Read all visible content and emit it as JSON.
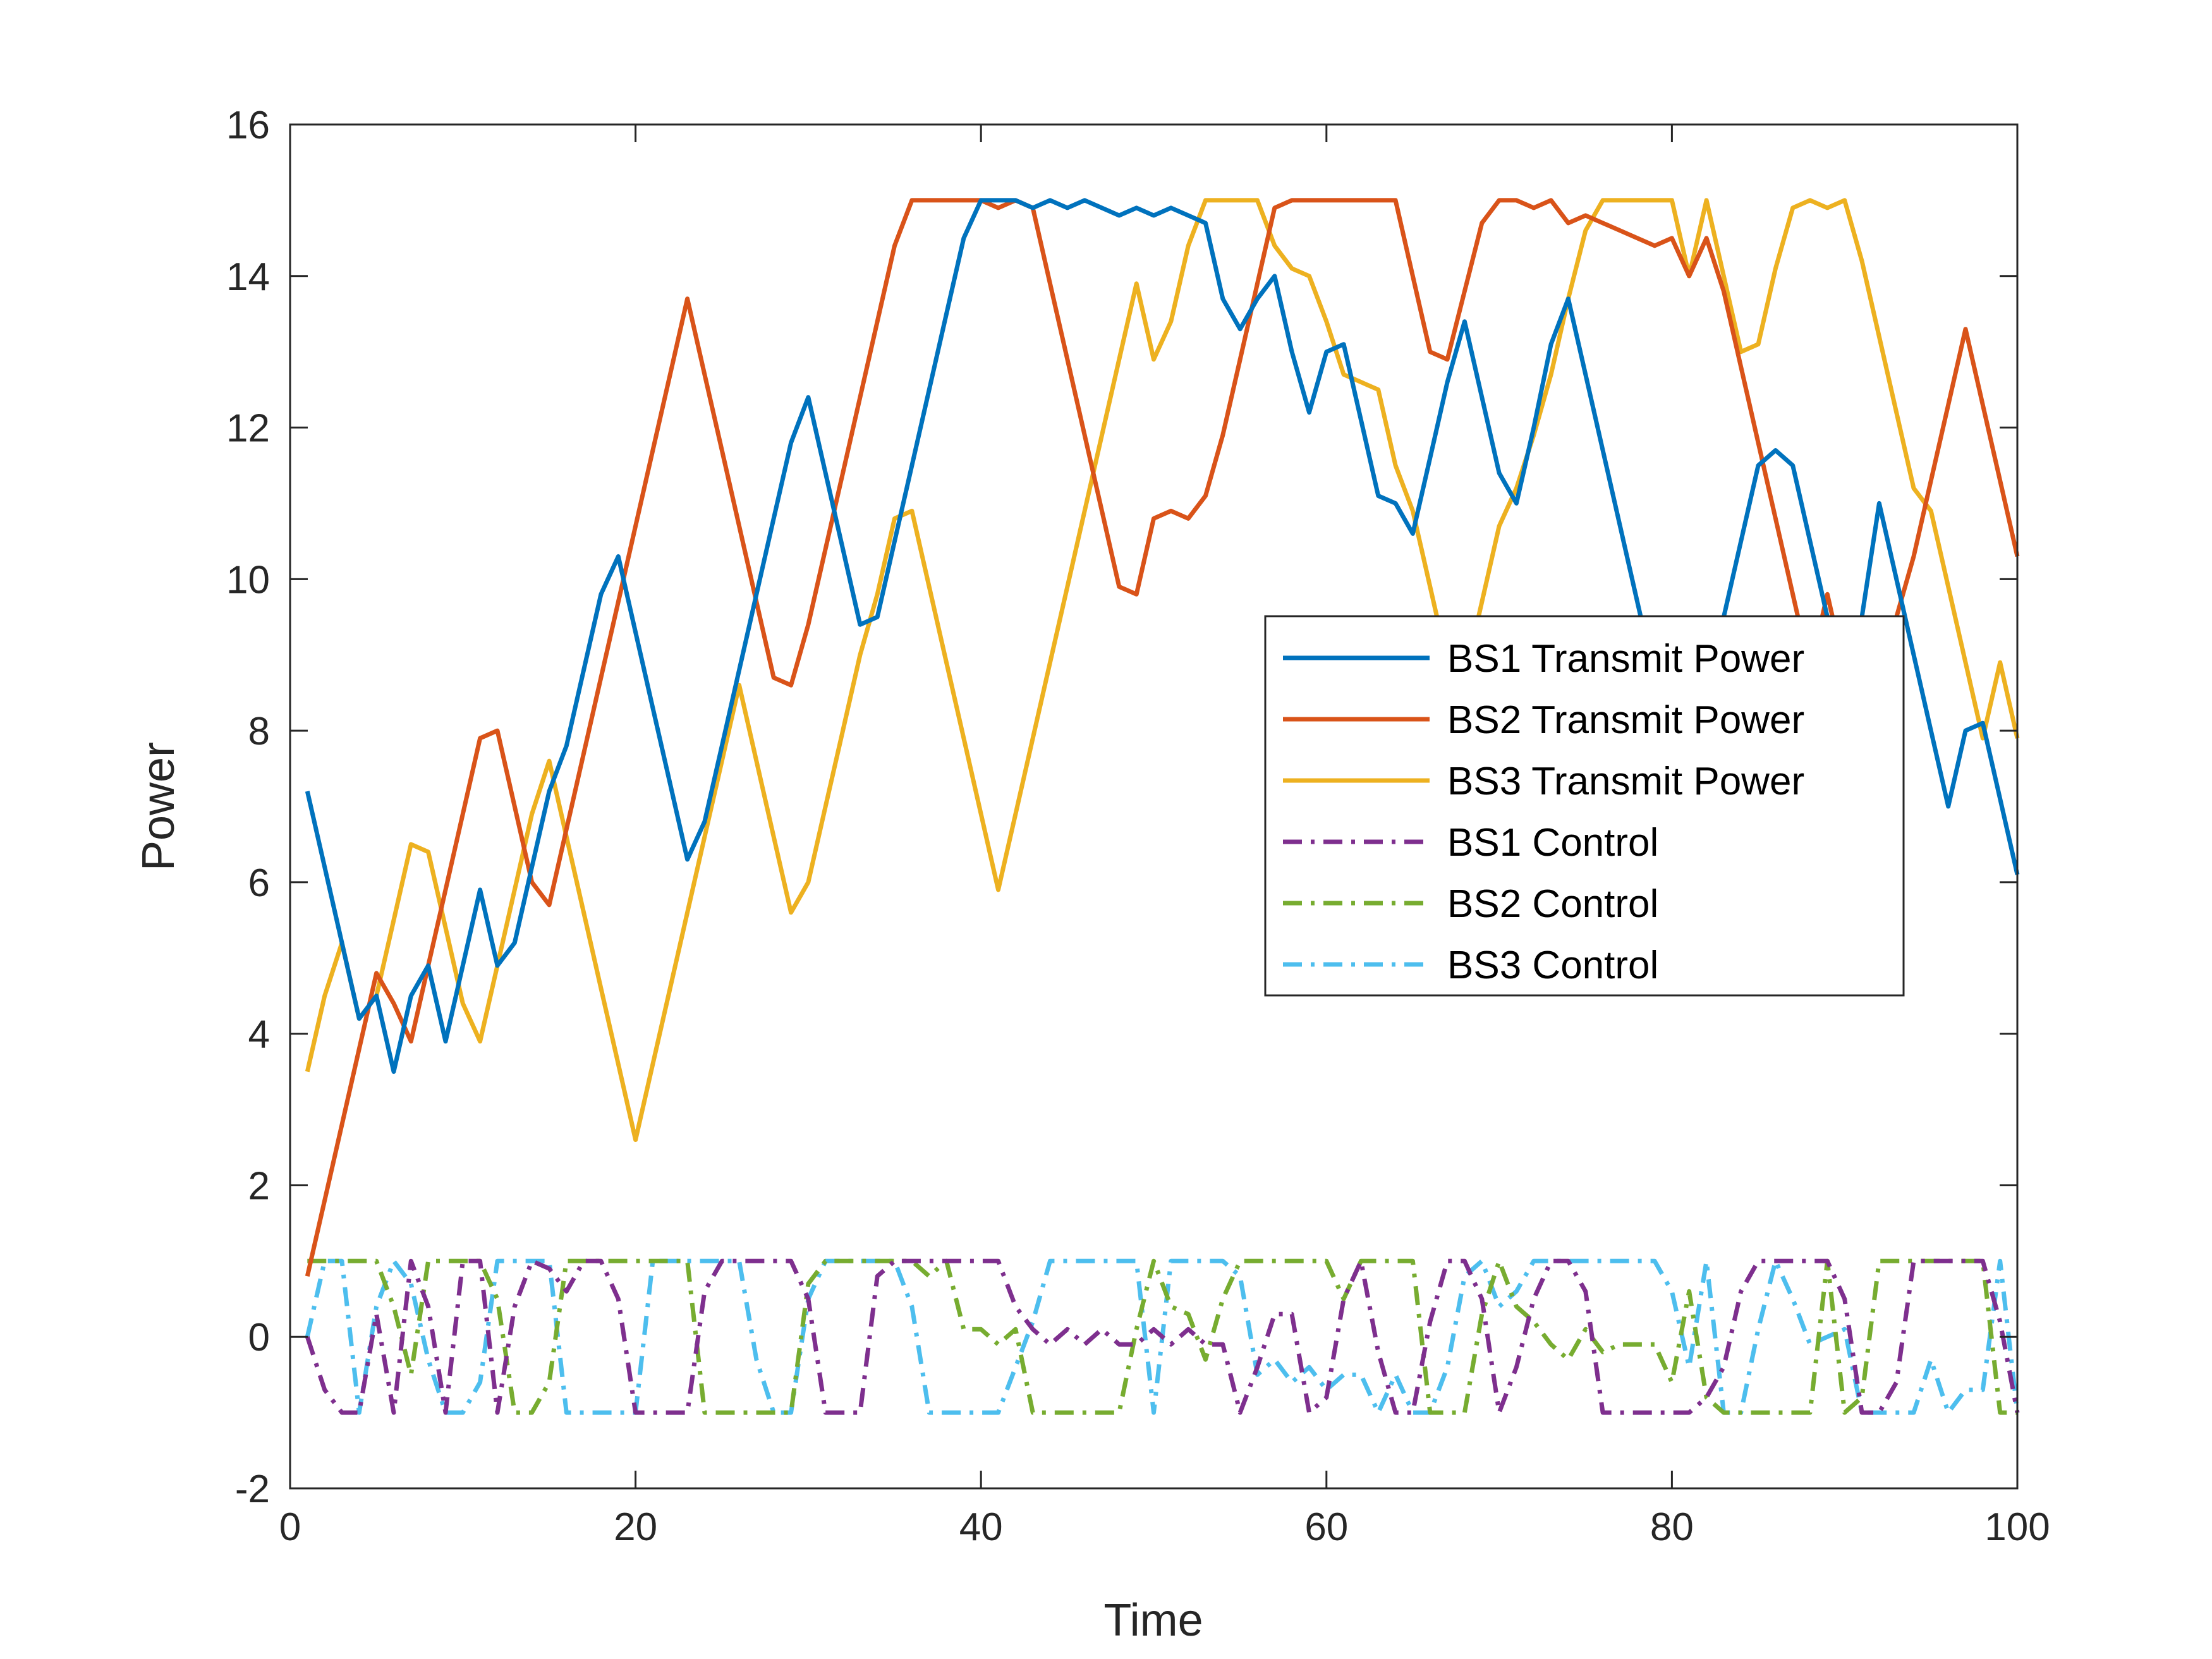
{
  "chart_data": {
    "type": "line",
    "title": "",
    "xlabel": "Time",
    "ylabel": "Power",
    "xlim": [
      0,
      100
    ],
    "ylim": [
      -2,
      16
    ],
    "xticks": [
      "0",
      "20",
      "40",
      "60",
      "80",
      "100"
    ],
    "yticks": [
      "-2",
      "0",
      "2",
      "4",
      "6",
      "8",
      "10",
      "12",
      "14",
      "16"
    ],
    "grid": false,
    "legend_position": "center-right",
    "series": [
      {
        "name": "BS1 Transmit Power",
        "color": "#0072BD",
        "style": "solid",
        "x": [
          1,
          2,
          3,
          4,
          5,
          6,
          7,
          8,
          9,
          10,
          11,
          12,
          13,
          14,
          15,
          16,
          17,
          18,
          19,
          20,
          21,
          22,
          23,
          24,
          25,
          26,
          27,
          28,
          29,
          30,
          31,
          32,
          33,
          34,
          35,
          36,
          37,
          38,
          39,
          40,
          41,
          42,
          43,
          44,
          45,
          46,
          47,
          48,
          49,
          50,
          51,
          52,
          53,
          54,
          55,
          56,
          57,
          58,
          59,
          60,
          61,
          62,
          63,
          64,
          65,
          66,
          67,
          68,
          69,
          70,
          71,
          72,
          73,
          74,
          75,
          76,
          77,
          78,
          79,
          80,
          81,
          82,
          83,
          84,
          85,
          86,
          87,
          88,
          89,
          90,
          91,
          92,
          93,
          94,
          95,
          96,
          97,
          98,
          99,
          100
        ],
        "values": [
          7.2,
          6.2,
          5.2,
          4.2,
          4.5,
          3.5,
          4.5,
          4.9,
          3.9,
          4.9,
          5.9,
          4.9,
          5.2,
          6.2,
          7.2,
          7.8,
          8.8,
          9.8,
          10.3,
          9.3,
          8.3,
          7.3,
          6.3,
          6.8,
          7.8,
          8.8,
          9.8,
          10.8,
          11.8,
          12.4,
          11.4,
          10.4,
          9.4,
          9.5,
          10.5,
          11.5,
          12.5,
          13.5,
          14.5,
          15.0,
          15.0,
          15.0,
          14.9,
          15.0,
          14.9,
          15.0,
          14.9,
          14.8,
          14.9,
          14.8,
          14.9,
          14.8,
          14.7,
          13.7,
          13.3,
          13.7,
          14.0,
          13.0,
          12.2,
          13.0,
          13.1,
          12.1,
          11.1,
          11.0,
          10.6,
          11.6,
          12.6,
          13.4,
          12.4,
          11.4,
          11.0,
          12.0,
          13.1,
          13.7,
          12.7,
          11.7,
          10.7,
          9.7,
          8.7,
          7.7,
          7.7,
          8.7,
          9.5,
          10.5,
          11.5,
          11.7,
          11.5,
          10.5,
          9.5,
          8.5,
          9.5,
          11.0,
          10.0,
          9.0,
          8.0,
          7.0,
          8.0,
          8.1,
          7.1,
          6.1
        ]
      },
      {
        "name": "BS2 Transmit Power",
        "color": "#D95319",
        "style": "solid",
        "x": [
          1,
          2,
          3,
          4,
          5,
          6,
          7,
          8,
          9,
          10,
          11,
          12,
          13,
          14,
          15,
          16,
          17,
          18,
          19,
          20,
          21,
          22,
          23,
          24,
          25,
          26,
          27,
          28,
          29,
          30,
          31,
          32,
          33,
          34,
          35,
          36,
          37,
          38,
          39,
          40,
          41,
          42,
          43,
          44,
          45,
          46,
          47,
          48,
          49,
          50,
          51,
          52,
          53,
          54,
          55,
          56,
          57,
          58,
          59,
          60,
          61,
          62,
          63,
          64,
          65,
          66,
          67,
          68,
          69,
          70,
          71,
          72,
          73,
          74,
          75,
          76,
          77,
          78,
          79,
          80,
          81,
          82,
          83,
          84,
          85,
          86,
          87,
          88,
          89,
          90,
          91,
          92,
          93,
          94,
          95,
          96,
          97,
          98,
          99,
          100
        ],
        "values": [
          0.8,
          1.8,
          2.8,
          3.8,
          4.8,
          4.4,
          3.9,
          4.9,
          5.9,
          6.9,
          7.9,
          8.0,
          7.0,
          6.0,
          5.7,
          6.7,
          7.7,
          8.7,
          9.7,
          10.7,
          11.7,
          12.7,
          13.7,
          12.7,
          11.7,
          10.7,
          9.7,
          8.7,
          8.6,
          9.4,
          10.4,
          11.4,
          12.4,
          13.4,
          14.4,
          15.0,
          15.0,
          15.0,
          15.0,
          15.0,
          14.9,
          15.0,
          14.9,
          13.9,
          12.9,
          11.9,
          10.9,
          9.9,
          9.8,
          10.8,
          10.9,
          10.8,
          11.1,
          11.9,
          12.9,
          13.9,
          14.9,
          15.0,
          15.0,
          15.0,
          15.0,
          15.0,
          15.0,
          15.0,
          14.0,
          13.0,
          12.9,
          13.8,
          14.7,
          15.0,
          15.0,
          14.9,
          15.0,
          14.7,
          14.8,
          14.7,
          14.6,
          14.5,
          14.4,
          14.5,
          14.0,
          14.5,
          13.8,
          12.8,
          11.8,
          10.8,
          9.8,
          8.8,
          9.8,
          8.8,
          8.5,
          9.0,
          9.5,
          10.3,
          11.3,
          12.3,
          13.3,
          12.3,
          11.3,
          10.3
        ]
      },
      {
        "name": "BS3 Transmit Power",
        "color": "#EDB120",
        "style": "solid",
        "x": [
          1,
          2,
          3,
          4,
          5,
          6,
          7,
          8,
          9,
          10,
          11,
          12,
          13,
          14,
          15,
          16,
          17,
          18,
          19,
          20,
          21,
          22,
          23,
          24,
          25,
          26,
          27,
          28,
          29,
          30,
          31,
          32,
          33,
          34,
          35,
          36,
          37,
          38,
          39,
          40,
          41,
          42,
          43,
          44,
          45,
          46,
          47,
          48,
          49,
          50,
          51,
          52,
          53,
          54,
          55,
          56,
          57,
          58,
          59,
          60,
          61,
          62,
          63,
          64,
          65,
          66,
          67,
          68,
          69,
          70,
          71,
          72,
          73,
          74,
          75,
          76,
          77,
          78,
          79,
          80,
          81,
          82,
          83,
          84,
          85,
          86,
          87,
          88,
          89,
          90,
          91,
          92,
          93,
          94,
          95,
          96,
          97,
          98,
          99,
          100
        ],
        "values": [
          3.5,
          4.5,
          5.2,
          4.2,
          4.5,
          5.5,
          6.5,
          6.4,
          5.4,
          4.4,
          3.9,
          4.9,
          5.9,
          6.9,
          7.6,
          6.6,
          5.6,
          4.6,
          3.6,
          2.6,
          3.6,
          4.6,
          5.6,
          6.6,
          7.6,
          8.6,
          7.6,
          6.6,
          5.6,
          6.0,
          7.0,
          8.0,
          9.0,
          9.8,
          10.8,
          10.9,
          9.9,
          8.9,
          7.9,
          6.9,
          5.9,
          6.9,
          7.9,
          8.9,
          9.9,
          10.9,
          11.9,
          12.9,
          13.9,
          12.9,
          13.4,
          14.4,
          15.0,
          15.0,
          15.0,
          15.0,
          14.4,
          14.1,
          14.0,
          13.4,
          12.7,
          12.6,
          12.5,
          11.5,
          10.9,
          9.9,
          8.9,
          8.7,
          9.7,
          10.7,
          11.2,
          11.9,
          12.7,
          13.7,
          14.6,
          15.0,
          15.0,
          15.0,
          15.0,
          15.0,
          14.0,
          15.0,
          14.0,
          13.0,
          13.1,
          14.1,
          14.9,
          15.0,
          14.9,
          15.0,
          14.2,
          13.2,
          12.2,
          11.2,
          10.9,
          9.9,
          8.9,
          7.9,
          8.9,
          7.9
        ]
      },
      {
        "name": "BS1 Control",
        "color": "#7E2F8E",
        "style": "dashdot",
        "x": [
          1,
          2,
          3,
          4,
          5,
          6,
          7,
          8,
          9,
          10,
          11,
          12,
          13,
          14,
          15,
          16,
          17,
          18,
          19,
          20,
          21,
          22,
          23,
          24,
          25,
          26,
          27,
          28,
          29,
          30,
          31,
          32,
          33,
          34,
          35,
          36,
          37,
          38,
          39,
          40,
          41,
          42,
          43,
          44,
          45,
          46,
          47,
          48,
          49,
          50,
          51,
          52,
          53,
          54,
          55,
          56,
          57,
          58,
          59,
          60,
          61,
          62,
          63,
          64,
          65,
          66,
          67,
          68,
          69,
          70,
          71,
          72,
          73,
          74,
          75,
          76,
          77,
          78,
          79,
          80,
          81,
          82,
          83,
          84,
          85,
          86,
          87,
          88,
          89,
          90,
          91,
          92,
          93,
          94,
          95,
          96,
          97,
          98,
          99,
          100
        ],
        "values": [
          0,
          -0.7,
          -1,
          -1,
          0.3,
          -1,
          1,
          0.4,
          -1,
          1,
          1,
          -1,
          0.4,
          1,
          0.9,
          0.6,
          1,
          1,
          0.5,
          -1,
          -1,
          -1,
          -1,
          0.6,
          1,
          1,
          1,
          1,
          1,
          0.5,
          -1,
          -1,
          -1,
          0.8,
          1,
          1,
          1,
          1,
          1,
          1,
          1,
          0.4,
          0.1,
          -0.1,
          0.1,
          -0.1,
          0.1,
          -0.1,
          -0.1,
          0.1,
          -0.1,
          0.1,
          -0.1,
          -0.1,
          -1,
          -0.4,
          0.3,
          0.3,
          -1,
          -0.8,
          0.5,
          1,
          -0.2,
          -1,
          -1,
          0.2,
          1,
          1,
          0.5,
          -1,
          -0.4,
          0.5,
          1,
          1,
          0.6,
          -1,
          -1,
          -1,
          -1,
          -1,
          -1,
          -0.8,
          -0.4,
          0.6,
          1,
          1,
          1,
          1,
          1,
          0.5,
          -1,
          -1,
          -0.6,
          1,
          1,
          1,
          1,
          1,
          0.2,
          -1
        ]
      },
      {
        "name": "BS2 Control",
        "color": "#77AC30",
        "style": "dashdot",
        "x": [
          1,
          2,
          3,
          4,
          5,
          6,
          7,
          8,
          9,
          10,
          11,
          12,
          13,
          14,
          15,
          16,
          17,
          18,
          19,
          20,
          21,
          22,
          23,
          24,
          25,
          26,
          27,
          28,
          29,
          30,
          31,
          32,
          33,
          34,
          35,
          36,
          37,
          38,
          39,
          40,
          41,
          42,
          43,
          44,
          45,
          46,
          47,
          48,
          49,
          50,
          51,
          52,
          53,
          54,
          55,
          56,
          57,
          58,
          59,
          60,
          61,
          62,
          63,
          64,
          65,
          66,
          67,
          68,
          69,
          70,
          71,
          72,
          73,
          74,
          75,
          76,
          77,
          78,
          79,
          80,
          81,
          82,
          83,
          84,
          85,
          86,
          87,
          88,
          89,
          90,
          91,
          92,
          93,
          94,
          95,
          96,
          97,
          98,
          99,
          100
        ],
        "values": [
          1,
          1,
          1,
          1,
          1,
          0.4,
          -0.5,
          1,
          1,
          1,
          1,
          0.5,
          -1,
          -1,
          -0.6,
          1,
          1,
          1,
          1,
          1,
          1,
          1,
          1,
          -1,
          -1,
          -1,
          -1,
          -1,
          -1,
          0.7,
          1,
          1,
          1,
          1,
          1,
          1,
          0.8,
          1,
          0.1,
          0.1,
          -0.1,
          0.1,
          -1,
          -1,
          -1,
          -1,
          -1,
          -1,
          0.1,
          1,
          0.4,
          0.3,
          -0.3,
          0.5,
          1,
          1,
          1,
          1,
          1,
          1,
          0.5,
          1,
          1,
          1,
          1,
          -1,
          -1,
          -1,
          0.3,
          1,
          0.4,
          0.2,
          -0.1,
          -0.3,
          0.1,
          -0.2,
          -0.1,
          -0.1,
          -0.1,
          -0.6,
          0.6,
          -0.8,
          -1,
          -1,
          -1,
          -1,
          -1,
          -1,
          1,
          -1,
          -0.8,
          1,
          1,
          1,
          1,
          1,
          1,
          1,
          -1,
          -1
        ]
      },
      {
        "name": "BS3 Control",
        "color": "#4DBEEE",
        "style": "dashdot",
        "x": [
          1,
          2,
          3,
          4,
          5,
          6,
          7,
          8,
          9,
          10,
          11,
          12,
          13,
          14,
          15,
          16,
          17,
          18,
          19,
          20,
          21,
          22,
          23,
          24,
          25,
          26,
          27,
          28,
          29,
          30,
          31,
          32,
          33,
          34,
          35,
          36,
          37,
          38,
          39,
          40,
          41,
          42,
          43,
          44,
          45,
          46,
          47,
          48,
          49,
          50,
          51,
          52,
          53,
          54,
          55,
          56,
          57,
          58,
          59,
          60,
          61,
          62,
          63,
          64,
          65,
          66,
          67,
          68,
          69,
          70,
          71,
          72,
          73,
          74,
          75,
          76,
          77,
          78,
          79,
          80,
          81,
          82,
          83,
          84,
          85,
          86,
          87,
          88,
          89,
          90,
          91,
          92,
          93,
          94,
          95,
          96,
          97,
          98,
          99,
          100
        ],
        "values": [
          0,
          1,
          1,
          -1,
          0.4,
          1,
          0.7,
          -0.3,
          -1,
          -1,
          -0.6,
          1,
          1,
          1,
          1,
          -1,
          -1,
          -1,
          -1,
          -1,
          1,
          1,
          1,
          1,
          1,
          1,
          -0.3,
          -1,
          -1,
          0.5,
          1,
          1,
          1,
          1,
          1,
          0.4,
          -1,
          -1,
          -1,
          -1,
          -1,
          -0.4,
          0.2,
          1,
          1,
          1,
          1,
          1,
          1,
          -1,
          1,
          1,
          1,
          1,
          0.8,
          -0.5,
          -0.3,
          -0.6,
          -0.4,
          -0.7,
          -0.5,
          -0.5,
          -1,
          -0.5,
          -1,
          -1,
          -0.4,
          0.8,
          1,
          0.4,
          0.6,
          1,
          1,
          1,
          1,
          1,
          1,
          1,
          1,
          0.6,
          -0.4,
          1,
          -1,
          -1,
          0.1,
          1,
          0.5,
          -0.1,
          0,
          0.1,
          -1,
          -1,
          -1,
          -1,
          -0.3,
          -1,
          -0.7,
          -0.7,
          1,
          -1
        ]
      }
    ]
  }
}
